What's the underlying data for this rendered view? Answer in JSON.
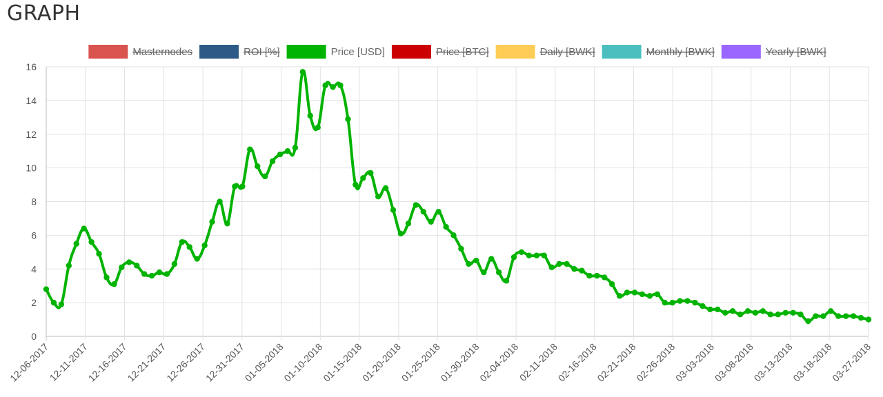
{
  "page": {
    "title": "GRAPH"
  },
  "colors": {
    "grid": "#e2e2e2",
    "axis": "#bbbbbb",
    "text": "#555555"
  },
  "chart_data": {
    "type": "line",
    "grid": true,
    "legend_position": "top",
    "ylim": [
      0,
      16
    ],
    "y_ticks": [
      0,
      2,
      4,
      6,
      8,
      10,
      12,
      14,
      16
    ],
    "x_tick_labels": [
      "12-06-2017",
      "12-11-2017",
      "12-16-2017",
      "12-21-2017",
      "12-26-2017",
      "12-31-2017",
      "01-05-2018",
      "01-10-2018",
      "01-15-2018",
      "01-20-2018",
      "01-25-2018",
      "01-30-2018",
      "02-04-2018",
      "02-11-2018",
      "02-16-2018",
      "02-21-2018",
      "02-26-2018",
      "03-03-2018",
      "03-08-2018",
      "03-13-2018",
      "03-18-2018",
      "03-27-2018"
    ],
    "legend": [
      {
        "name": "Masternodes",
        "color": "#d9534f",
        "hidden": true
      },
      {
        "name": "ROI [%]",
        "color": "#2e5a87",
        "hidden": true
      },
      {
        "name": "Price [USD]",
        "color": "#00b300",
        "hidden": false
      },
      {
        "name": "Price [BTC]",
        "color": "#cc0000",
        "hidden": true
      },
      {
        "name": "Daily [BWK]",
        "color": "#ffcc55",
        "hidden": true
      },
      {
        "name": "Monthly [BWK]",
        "color": "#4bbfbf",
        "hidden": true
      },
      {
        "name": "Yearly [BWK]",
        "color": "#9966ff",
        "hidden": true
      }
    ],
    "series": [
      {
        "name": "Price [USD]",
        "color": "#00b300",
        "values": [
          2.8,
          2.0,
          1.9,
          4.2,
          5.5,
          6.4,
          5.6,
          4.9,
          3.5,
          3.1,
          4.1,
          4.4,
          4.2,
          3.7,
          3.6,
          3.8,
          3.7,
          4.3,
          5.6,
          5.3,
          4.6,
          5.4,
          6.8,
          8.0,
          6.7,
          8.9,
          8.9,
          11.1,
          10.1,
          9.5,
          10.4,
          10.8,
          11.0,
          11.2,
          15.7,
          13.1,
          12.4,
          14.9,
          14.8,
          14.9,
          12.9,
          9.0,
          9.4,
          9.7,
          8.3,
          8.8,
          7.5,
          6.1,
          6.7,
          7.8,
          7.4,
          6.8,
          7.4,
          6.5,
          6.0,
          5.2,
          4.3,
          4.5,
          3.8,
          4.6,
          3.8,
          3.3,
          4.7,
          5.0,
          4.8,
          4.8,
          4.8,
          4.1,
          4.3,
          4.3,
          4.0,
          3.9,
          3.6,
          3.6,
          3.5,
          3.1,
          2.4,
          2.6,
          2.6,
          2.5,
          2.4,
          2.5,
          2.0,
          2.0,
          2.1,
          2.1,
          2.0,
          1.8,
          1.6,
          1.6,
          1.4,
          1.5,
          1.3,
          1.5,
          1.4,
          1.5,
          1.3,
          1.3,
          1.4,
          1.4,
          1.3,
          0.9,
          1.2,
          1.2,
          1.5,
          1.2,
          1.2,
          1.2,
          1.1,
          1.0
        ]
      }
    ]
  }
}
